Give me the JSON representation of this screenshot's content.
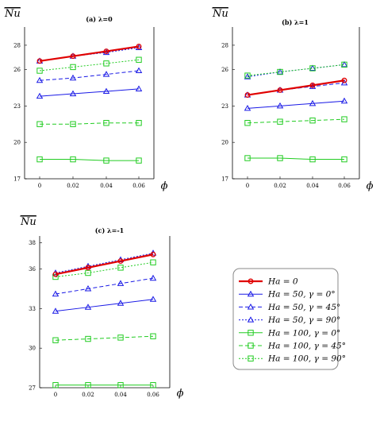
{
  "chart_data": [
    {
      "type": "line",
      "title": "(a)  λ=0",
      "ylabel": "Nu",
      "xlabel": "ϕ",
      "x": [
        0,
        0.02,
        0.04,
        0.06
      ],
      "x_tick_labels": [
        "0",
        "0.02",
        "0.04",
        "0.06"
      ],
      "ylim": [
        17,
        29.5
      ],
      "y_ticks": [
        17,
        20,
        23,
        26,
        28
      ],
      "series": [
        {
          "name": "Ha = 0",
          "values": [
            26.7,
            27.1,
            27.5,
            27.9
          ]
        },
        {
          "name": "Ha = 50, γ = 0°",
          "values": [
            23.8,
            24.0,
            24.2,
            24.4
          ]
        },
        {
          "name": "Ha = 50, γ = 45°",
          "values": [
            25.1,
            25.3,
            25.6,
            25.9
          ]
        },
        {
          "name": "Ha = 50, γ = 90°",
          "values": [
            26.7,
            27.1,
            27.4,
            27.8
          ]
        },
        {
          "name": "Ha = 100, γ = 0°",
          "values": [
            18.6,
            18.6,
            18.5,
            18.5
          ]
        },
        {
          "name": "Ha = 100, γ = 45°",
          "values": [
            21.5,
            21.5,
            21.6,
            21.6
          ]
        },
        {
          "name": "Ha = 100, γ = 90°",
          "values": [
            25.9,
            26.2,
            26.5,
            26.8
          ]
        }
      ]
    },
    {
      "type": "line",
      "title": "(b)  λ=1",
      "ylabel": "Nu",
      "xlabel": "ϕ",
      "x": [
        0,
        0.02,
        0.04,
        0.06
      ],
      "x_tick_labels": [
        "0",
        "0.02",
        "0.04",
        "0.06"
      ],
      "ylim": [
        17,
        29.5
      ],
      "y_ticks": [
        17,
        20,
        23,
        26,
        28
      ],
      "series": [
        {
          "name": "Ha = 0",
          "values": [
            23.9,
            24.3,
            24.7,
            25.1
          ]
        },
        {
          "name": "Ha = 50, γ = 0°",
          "values": [
            22.8,
            23.0,
            23.2,
            23.4
          ]
        },
        {
          "name": "Ha = 50, γ = 45°",
          "values": [
            23.9,
            24.3,
            24.6,
            24.9
          ]
        },
        {
          "name": "Ha = 50, γ = 90°",
          "values": [
            25.4,
            25.8,
            26.1,
            26.4
          ]
        },
        {
          "name": "Ha = 100, γ = 0°",
          "values": [
            18.7,
            18.7,
            18.6,
            18.6
          ]
        },
        {
          "name": "Ha = 100, γ = 45°",
          "values": [
            21.6,
            21.7,
            21.8,
            21.9
          ]
        },
        {
          "name": "Ha = 100, γ = 90°",
          "values": [
            25.5,
            25.8,
            26.1,
            26.4
          ]
        }
      ]
    },
    {
      "type": "line",
      "title": "(c)  λ=-1",
      "ylabel": "Nu",
      "xlabel": "ϕ",
      "x": [
        0,
        0.02,
        0.04,
        0.06
      ],
      "x_tick_labels": [
        "0",
        "0.02",
        "0.04",
        "0.06"
      ],
      "ylim": [
        27,
        38.5
      ],
      "y_ticks": [
        27,
        30,
        33,
        36,
        38
      ],
      "series": [
        {
          "name": "Ha = 0",
          "values": [
            35.6,
            36.1,
            36.6,
            37.1
          ]
        },
        {
          "name": "Ha = 50, γ = 0°",
          "values": [
            32.8,
            33.1,
            33.4,
            33.7
          ]
        },
        {
          "name": "Ha = 50, γ = 45°",
          "values": [
            34.1,
            34.5,
            34.9,
            35.3
          ]
        },
        {
          "name": "Ha = 50, γ = 90°",
          "values": [
            35.7,
            36.2,
            36.7,
            37.2
          ]
        },
        {
          "name": "Ha = 100, γ = 0°",
          "values": [
            27.2,
            27.2,
            27.2,
            27.2
          ]
        },
        {
          "name": "Ha = 100, γ = 45°",
          "values": [
            30.6,
            30.7,
            30.8,
            30.9
          ]
        },
        {
          "name": "Ha = 100, γ = 90°",
          "values": [
            35.4,
            35.7,
            36.1,
            36.5
          ]
        }
      ]
    }
  ],
  "series_styles": [
    {
      "color": "#e00000",
      "dash": "",
      "marker": "circle",
      "width": 2.2
    },
    {
      "color": "#1a1ae6",
      "dash": "",
      "marker": "triangle",
      "width": 1
    },
    {
      "color": "#1a1ae6",
      "dash": "5 3",
      "marker": "triangle",
      "width": 1
    },
    {
      "color": "#1a1ae6",
      "dash": "2 2",
      "marker": "triangle",
      "width": 1
    },
    {
      "color": "#22cc22",
      "dash": "",
      "marker": "square",
      "width": 1
    },
    {
      "color": "#22cc22",
      "dash": "5 3",
      "marker": "square",
      "width": 1
    },
    {
      "color": "#22cc22",
      "dash": "2 2",
      "marker": "square",
      "width": 1
    }
  ],
  "legend": {
    "placement": "bottom-right",
    "entries": [
      "Ha = 0",
      "Ha = 50, γ = 0°",
      "Ha = 50, γ = 45°",
      "Ha = 50, γ = 90°",
      "Ha = 100, γ = 0°",
      "Ha = 100, γ = 45°",
      "Ha = 100, γ = 90°"
    ]
  }
}
